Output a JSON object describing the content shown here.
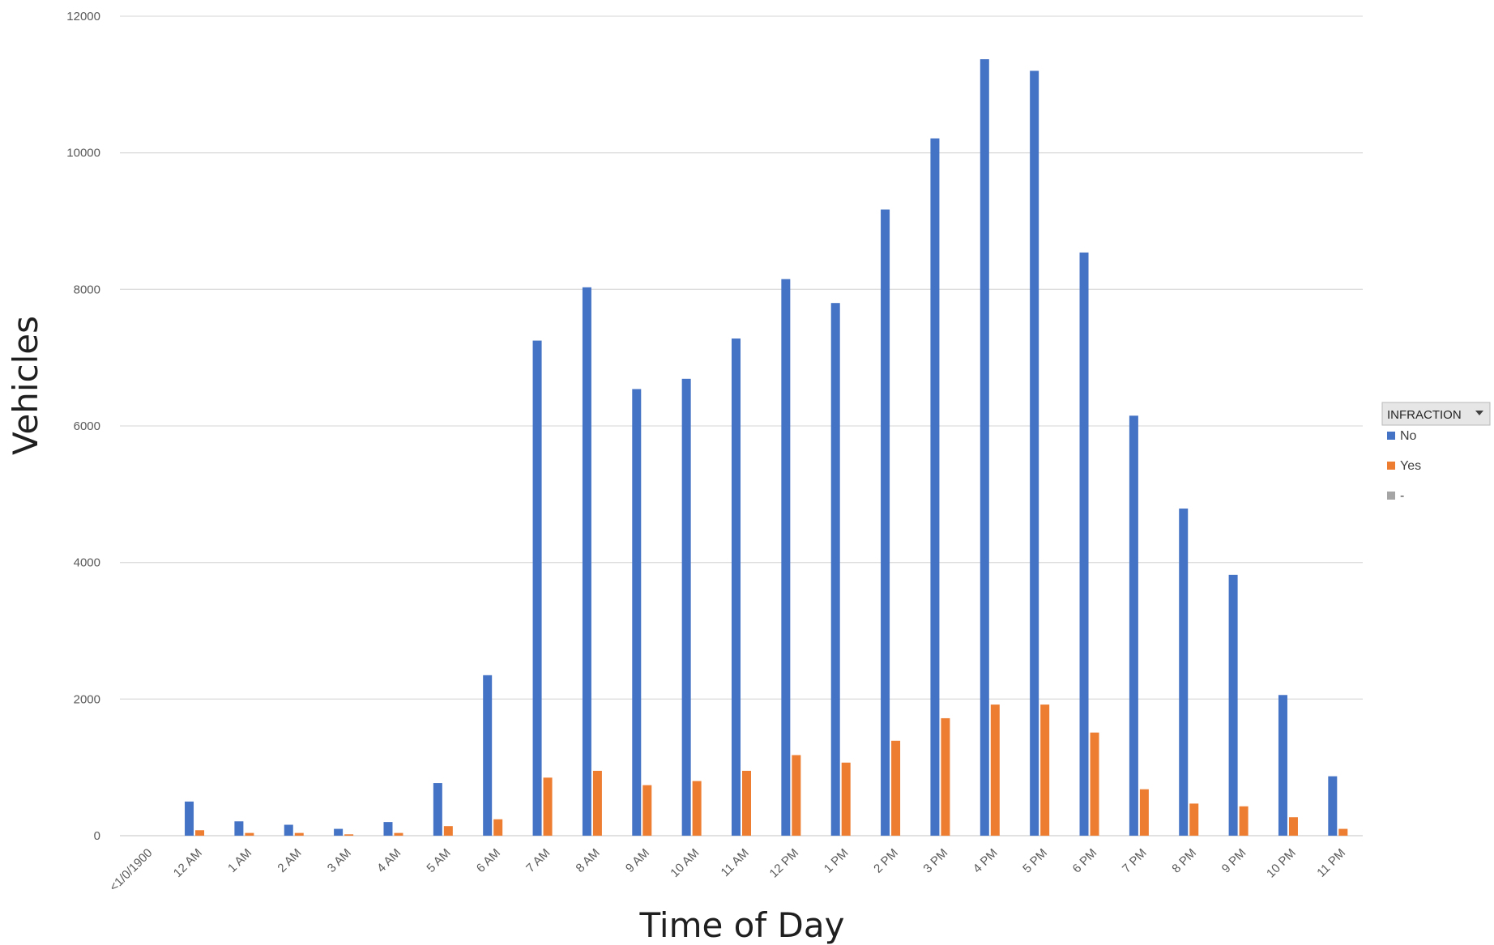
{
  "chart_data": {
    "type": "bar",
    "title": "",
    "xlabel": "Time of Day",
    "ylabel": "Vehicles",
    "ylim": [
      0,
      12000
    ],
    "yticks": [
      0,
      2000,
      4000,
      6000,
      8000,
      10000,
      12000
    ],
    "grid": true,
    "legend": {
      "title": "INFRACTION",
      "dropdown_icon": "dropdown-arrow-icon",
      "placement": "right"
    },
    "categories": [
      "<1/0/1900",
      "12 AM",
      "1 AM",
      "2 AM",
      "3 AM",
      "4 AM",
      "5 AM",
      "6 AM",
      "7 AM",
      "8 AM",
      "9 AM",
      "10 AM",
      "11 AM",
      "12 PM",
      "1 PM",
      "2 PM",
      "3 PM",
      "4 PM",
      "5 PM",
      "6 PM",
      "7 PM",
      "8 PM",
      "9 PM",
      "10 PM",
      "11 PM"
    ],
    "series": [
      {
        "name": "No",
        "color": "#4472C4",
        "values": [
          0,
          500,
          210,
          160,
          100,
          200,
          770,
          2350,
          7250,
          8030,
          6540,
          6690,
          7280,
          8150,
          7800,
          9170,
          10210,
          11370,
          11200,
          8540,
          6150,
          4790,
          3820,
          2060,
          870
        ]
      },
      {
        "name": "Yes",
        "color": "#ED7D31",
        "values": [
          0,
          80,
          40,
          40,
          20,
          40,
          140,
          240,
          850,
          950,
          740,
          800,
          950,
          1180,
          1070,
          1390,
          1720,
          1920,
          1920,
          1510,
          680,
          470,
          430,
          270,
          100
        ]
      },
      {
        "name": "-",
        "color": "#A5A5A5",
        "values": [
          0,
          0,
          0,
          0,
          0,
          0,
          0,
          0,
          0,
          0,
          0,
          0,
          0,
          0,
          0,
          0,
          0,
          0,
          0,
          0,
          0,
          0,
          0,
          0,
          0
        ]
      }
    ]
  }
}
